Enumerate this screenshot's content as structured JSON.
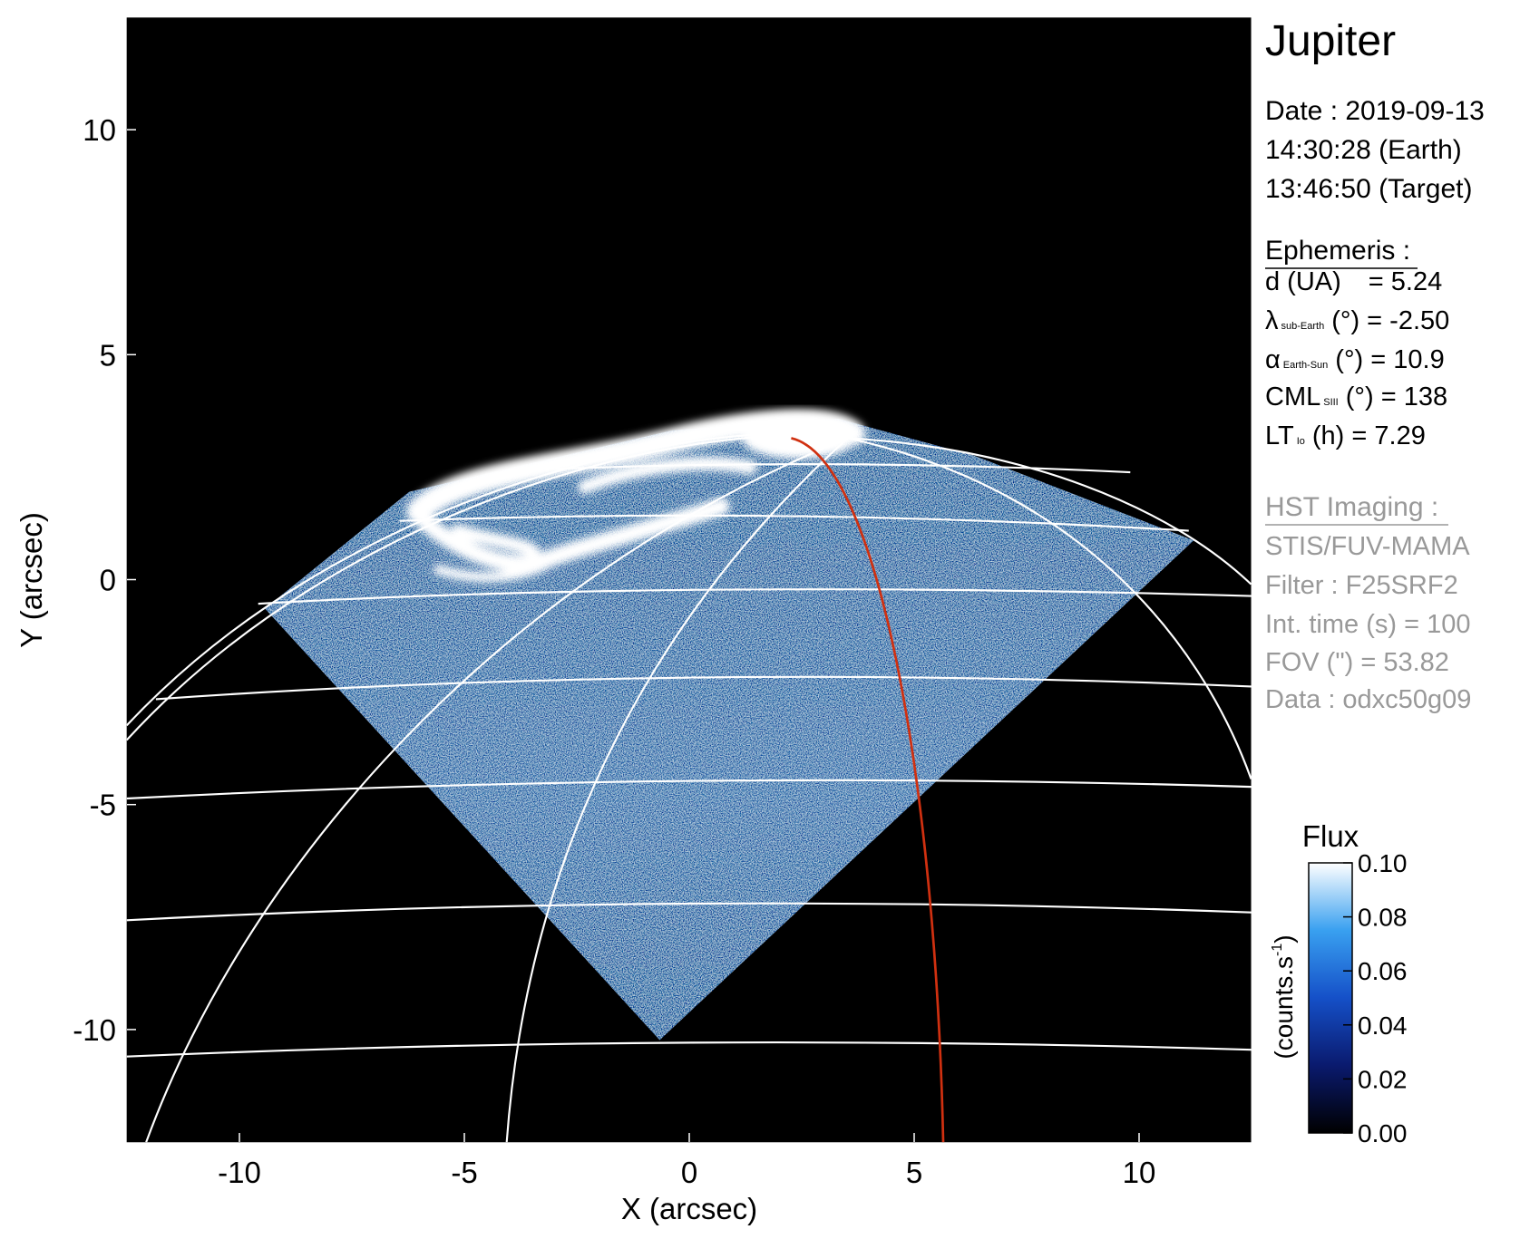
{
  "chart_data": {
    "type": "image",
    "xlabel": "X (arcsec)",
    "ylabel": "Y (arcsec)",
    "xlim": [
      -12.5,
      12.5
    ],
    "ylim": [
      -12.5,
      12.5
    ],
    "xticks": [
      -10,
      -5,
      0,
      5,
      10
    ],
    "yticks": [
      -10,
      -5,
      0,
      5,
      10
    ],
    "colorbar": {
      "title": "Flux",
      "label_parts": [
        "(counts.s",
        "-1",
        ")"
      ],
      "lim": [
        0,
        0.1
      ],
      "ticks": [
        {
          "value": 0,
          "label": "0.00"
        },
        {
          "value": 0.02,
          "label": "0.02"
        },
        {
          "value": 0.04,
          "label": "0.04"
        },
        {
          "value": 0.06,
          "label": "0.06"
        },
        {
          "value": 0.08,
          "label": "0.08"
        },
        {
          "value": 0.1,
          "label": "0.10"
        }
      ]
    },
    "panel": {
      "title": "Jupiter",
      "date": [
        "Date : 2019-09-13",
        "14:30:28 (Earth)",
        "13:46:50 (Target)"
      ],
      "ephemeris_title": "Ephemeris :",
      "ephemeris": [
        {
          "label": "d (UA)",
          "text": "= 5.24"
        },
        {
          "label": "λ",
          "sub": "sub-Earth",
          "text": "(°) = -2.50"
        },
        {
          "label": "α",
          "sub": "Earth-Sun",
          "text": "(°) = 10.9"
        },
        {
          "label": "CML",
          "sub": "SIII",
          "text": "(°) = 138"
        },
        {
          "label": "LT",
          "sub": "Io",
          "text": "(h) = 7.29"
        }
      ],
      "imaging_title": "HST Imaging :",
      "imaging": [
        "STIS/FUV-MAMA",
        "Filter : F25SRF2",
        "Int. time (s) = 100",
        "FOV (\") = 53.82",
        "Data : odxc50g09"
      ]
    }
  }
}
